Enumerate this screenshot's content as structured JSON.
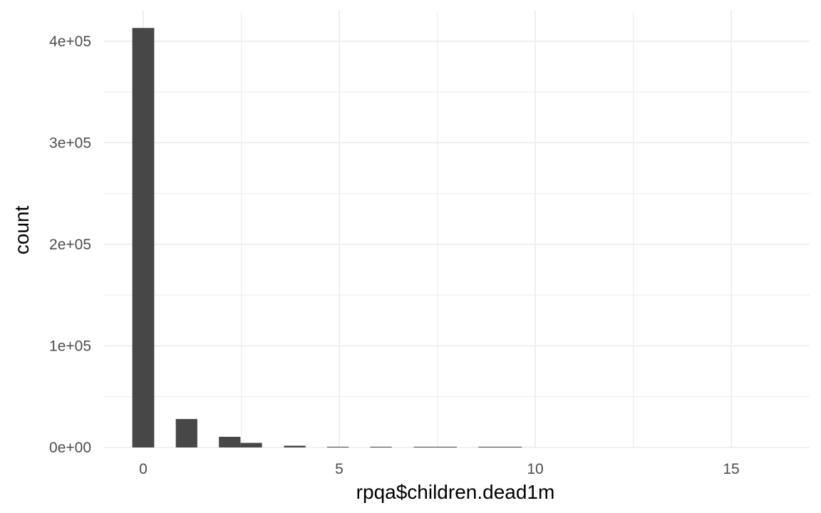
{
  "chart_data": {
    "type": "bar",
    "title": "",
    "xlabel": "rpqa$children.dead1m",
    "ylabel": "count",
    "xlim": [
      -1.0,
      17.0
    ],
    "ylim": [
      0,
      430000
    ],
    "x_ticks": [
      0,
      5,
      10,
      15
    ],
    "x_tick_labels": [
      "0",
      "5",
      "10",
      "15"
    ],
    "x_minor_ticks": [
      2.5,
      7.5,
      12.5
    ],
    "y_ticks": [
      0,
      100000,
      200000,
      300000,
      400000
    ],
    "y_tick_labels": [
      "0e+00",
      "1e+05",
      "2e+05",
      "3e+05",
      "4e+05"
    ],
    "y_minor_ticks": [
      50000,
      150000,
      250000,
      350000
    ],
    "grid": true,
    "bar_color": "#474747",
    "grid_color": "#ebebeb",
    "bins": [
      {
        "x0": -0.28,
        "x1": 0.28,
        "count": 413000
      },
      {
        "x0": 0.83,
        "x1": 1.38,
        "count": 28000
      },
      {
        "x0": 1.93,
        "x1": 2.48,
        "count": 10500
      },
      {
        "x0": 2.48,
        "x1": 3.03,
        "count": 4500
      },
      {
        "x0": 3.59,
        "x1": 4.14,
        "count": 1700
      },
      {
        "x0": 4.69,
        "x1": 5.24,
        "count": 700
      },
      {
        "x0": 5.79,
        "x1": 6.34,
        "count": 350
      },
      {
        "x0": 6.9,
        "x1": 7.45,
        "count": 200
      },
      {
        "x0": 7.45,
        "x1": 8.0,
        "count": 120
      },
      {
        "x0": 8.55,
        "x1": 9.1,
        "count": 60
      },
      {
        "x0": 9.1,
        "x1": 9.66,
        "count": 40
      }
    ]
  }
}
